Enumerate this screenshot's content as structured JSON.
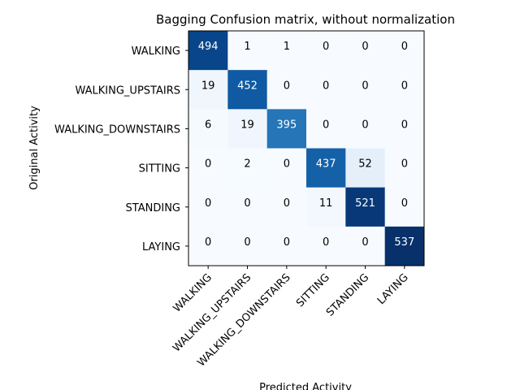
{
  "chart_data": {
    "type": "heatmap",
    "title": "Bagging Confusion matrix, without normalization",
    "xlabel": "Predicted Activity",
    "ylabel": "Original Activity",
    "x_categories": [
      "WALKING",
      "WALKING_UPSTAIRS",
      "WALKING_DOWNSTAIRS",
      "SITTING",
      "STANDING",
      "LAYING"
    ],
    "y_categories": [
      "WALKING",
      "WALKING_UPSTAIRS",
      "WALKING_DOWNSTAIRS",
      "SITTING",
      "STANDING",
      "LAYING"
    ],
    "values": [
      [
        494,
        1,
        1,
        0,
        0,
        0
      ],
      [
        19,
        452,
        0,
        0,
        0,
        0
      ],
      [
        6,
        19,
        395,
        0,
        0,
        0
      ],
      [
        0,
        2,
        0,
        437,
        52,
        0
      ],
      [
        0,
        0,
        0,
        11,
        521,
        0
      ],
      [
        0,
        0,
        0,
        0,
        0,
        537
      ]
    ],
    "colormap": "Blues",
    "colormap_stops": [
      "#f7fbff",
      "#deebf7",
      "#c6dbef",
      "#9ecae1",
      "#6baed6",
      "#4292c6",
      "#2171b5",
      "#08519c",
      "#08306b"
    ],
    "text_color_light": "#ffffff",
    "text_color_dark": "#000000",
    "grid": false,
    "xtick_rotation_deg": 45
  }
}
